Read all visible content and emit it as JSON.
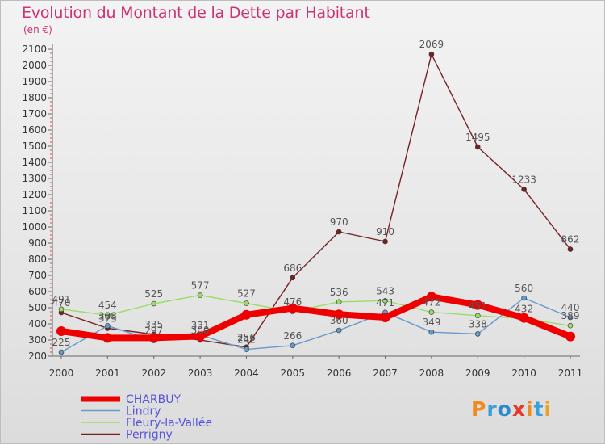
{
  "title": "Evolution du Montant de la Dette par Habitant",
  "subtitle": "(en €)",
  "logo": {
    "text": "Proxiti",
    "letters": [
      "P",
      "r",
      "o",
      "x",
      "i",
      "t",
      "i"
    ],
    "colors": [
      "#f08a1c",
      "#3aa0dd",
      "#2a8ad0",
      "#e8382a",
      "#f08a1c",
      "#3aa0dd",
      "#f0a020"
    ]
  },
  "chart_data": {
    "type": "line",
    "x": [
      "2000",
      "2001",
      "2002",
      "2003",
      "2004",
      "2005",
      "2006",
      "2007",
      "2008",
      "2009",
      "2010",
      "2011"
    ],
    "ylim": [
      200,
      2100
    ],
    "yticks": [
      200,
      300,
      400,
      500,
      600,
      700,
      800,
      900,
      1000,
      1100,
      1200,
      1300,
      1400,
      1500,
      1600,
      1700,
      1800,
      1900,
      2000,
      2100
    ],
    "grid": false,
    "legend_position": "bottom-left",
    "series": [
      {
        "name": "CHARBUY",
        "color": "#ee0000",
        "values": [
          355,
          313,
          313,
          323,
          456,
          497,
          459,
          440,
          568,
          517,
          437,
          322
        ],
        "labels": false
      },
      {
        "name": "Lindry",
        "color": "#6699cc",
        "values": [
          225,
          388,
          297,
          331,
          242,
          266,
          360,
          471,
          349,
          338,
          560,
          440
        ],
        "labels": [
          "225",
          "388",
          "297",
          "331",
          "242",
          "266",
          "360",
          "471",
          "349",
          "338",
          "560",
          "440"
        ]
      },
      {
        "name": "Fleury-la-Vallée",
        "color": "#99dd66",
        "values": [
          491,
          454,
          525,
          577,
          527,
          476,
          536,
          543,
          472,
          451,
          432,
          389
        ],
        "labels": [
          "491",
          "454",
          "525",
          "577",
          "527",
          "476",
          "536",
          "543",
          "472",
          "451",
          "432",
          "389"
        ]
      },
      {
        "name": "Perrigny",
        "color": "#772222",
        "values": [
          470,
          373,
          335,
          300,
          256,
          686,
          970,
          910,
          2069,
          1495,
          1233,
          862
        ],
        "labels": [
          "470",
          "373",
          "335",
          "300",
          "256",
          "686",
          "970",
          "910",
          "2069",
          "1495",
          "1233",
          "862"
        ]
      }
    ]
  }
}
